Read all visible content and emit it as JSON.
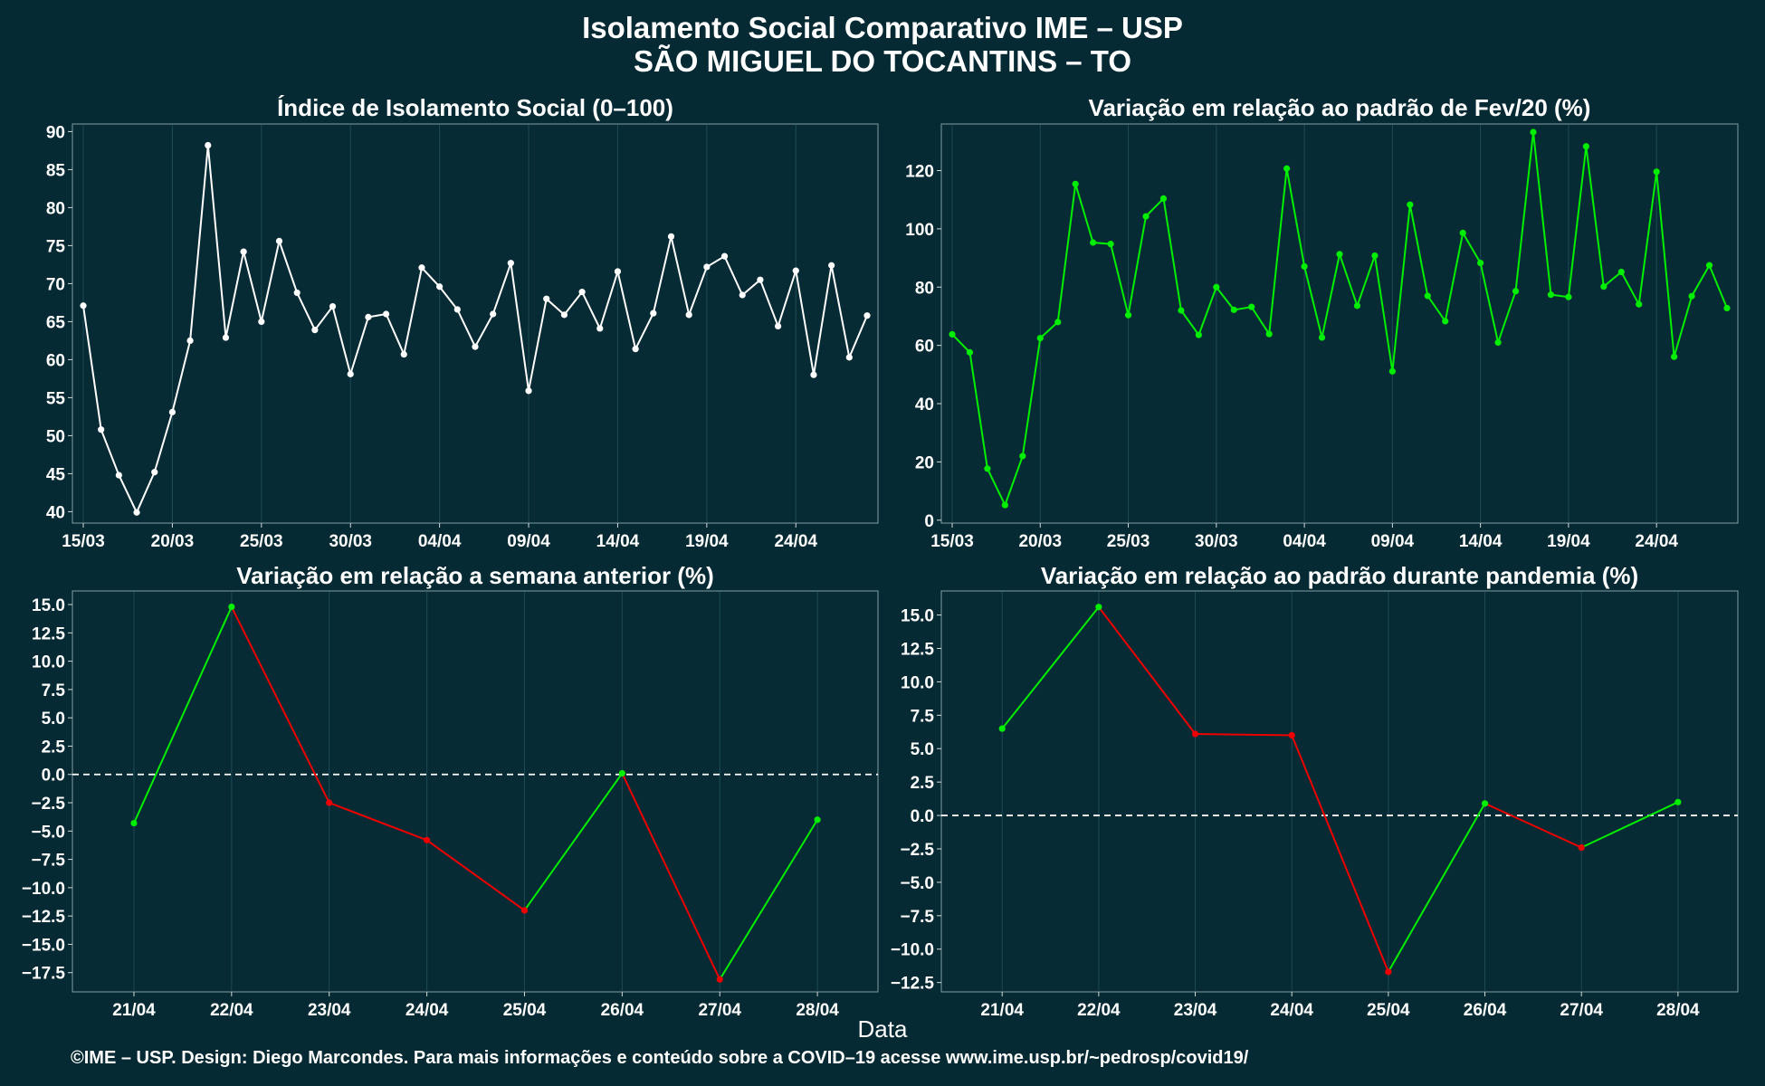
{
  "title_line1": "Isolamento Social Comparativo IME – USP",
  "title_line2": "SÃO MIGUEL DO TOCANTINS – TO",
  "xaxis_title": "Data",
  "footer": "©IME – USP. Design: Diego Marcondes. Para mais informações e conteúdo sobre a COVID–19 acesse www.ime.usp.br/~pedrosp/covid19/",
  "colors": {
    "background": "#062a34",
    "panel": "#072b35",
    "grid": "#1d4a55",
    "white_series": "#ffffff",
    "green": "#00ee00",
    "red": "#ee0000"
  },
  "chart_data": [
    {
      "type": "line",
      "title": "Índice de Isolamento Social (0–100)",
      "color": "white",
      "x_start": "15/03",
      "x_ticks": [
        "15/03",
        "20/03",
        "25/03",
        "30/03",
        "04/04",
        "09/04",
        "14/04",
        "19/04",
        "24/04"
      ],
      "ylim": [
        38.5,
        91
      ],
      "y_ticks": [
        40,
        45,
        50,
        55,
        60,
        65,
        70,
        75,
        80,
        85,
        90
      ],
      "values": [
        67.1,
        50.8,
        44.8,
        39.9,
        45.2,
        53.1,
        62.5,
        88.2,
        62.9,
        74.2,
        65.0,
        75.6,
        68.8,
        63.9,
        67.0,
        58.1,
        65.6,
        66.0,
        60.7,
        72.1,
        69.6,
        66.6,
        61.7,
        66.0,
        72.7,
        55.9,
        68.0,
        65.9,
        68.9,
        64.1,
        71.6,
        61.4,
        66.1,
        76.2,
        65.9,
        72.2,
        73.6,
        68.5,
        70.5,
        64.4,
        71.7,
        58.0,
        72.4,
        60.3,
        65.8
      ]
    },
    {
      "type": "line",
      "title": "Variação em relação ao padrão de Fev/20 (%)",
      "color": "green",
      "x_start": "15/03",
      "x_ticks": [
        "15/03",
        "20/03",
        "25/03",
        "30/03",
        "04/04",
        "09/04",
        "14/04",
        "19/04",
        "24/04"
      ],
      "ylim": [
        -1,
        136
      ],
      "y_ticks": [
        0,
        20,
        40,
        60,
        80,
        100,
        120
      ],
      "values": [
        63.8,
        57.6,
        17.7,
        5.2,
        22.0,
        62.5,
        68.0,
        115.4,
        95.3,
        94.8,
        70.4,
        104.3,
        110.4,
        72.0,
        63.6,
        80.0,
        72.2,
        73.2,
        63.9,
        120.7,
        87.1,
        62.7,
        91.3,
        73.6,
        90.8,
        51.1,
        108.3,
        77.0,
        68.3,
        98.6,
        88.3,
        61.0,
        78.6,
        133.2,
        77.4,
        76.6,
        128.3,
        80.2,
        85.2,
        74.1,
        119.6,
        56.1,
        76.9,
        87.5,
        72.8
      ]
    },
    {
      "type": "line",
      "title": "Variação em relação a semana anterior (%)",
      "x_ticks": [
        "21/04",
        "22/04",
        "23/04",
        "24/04",
        "25/04",
        "26/04",
        "27/04",
        "28/04"
      ],
      "ylim": [
        -19.2,
        16.2
      ],
      "y_ticks": [
        -17.5,
        -15.0,
        -12.5,
        -10.0,
        -7.5,
        -5.0,
        -2.5,
        0.0,
        2.5,
        5.0,
        7.5,
        10.0,
        12.5,
        15.0
      ],
      "reference_line": 0,
      "up_color": "green",
      "down_color": "red",
      "values": [
        -4.3,
        14.8,
        -2.5,
        -5.8,
        -12.0,
        0.1,
        -18.1,
        -4.0
      ]
    },
    {
      "type": "line",
      "title": "Variação em relação ao padrão durante pandemia (%)",
      "x_ticks": [
        "21/04",
        "22/04",
        "23/04",
        "24/04",
        "25/04",
        "26/04",
        "27/04",
        "28/04"
      ],
      "ylim": [
        -13.2,
        16.8
      ],
      "y_ticks": [
        -12.5,
        -10.0,
        -7.5,
        -5.0,
        -2.5,
        0.0,
        2.5,
        5.0,
        7.5,
        10.0,
        12.5,
        15.0
      ],
      "reference_line": 0,
      "up_color": "green",
      "down_color": "red",
      "values": [
        6.5,
        15.6,
        6.1,
        6.0,
        -11.7,
        0.9,
        -2.4,
        1.0
      ]
    }
  ]
}
